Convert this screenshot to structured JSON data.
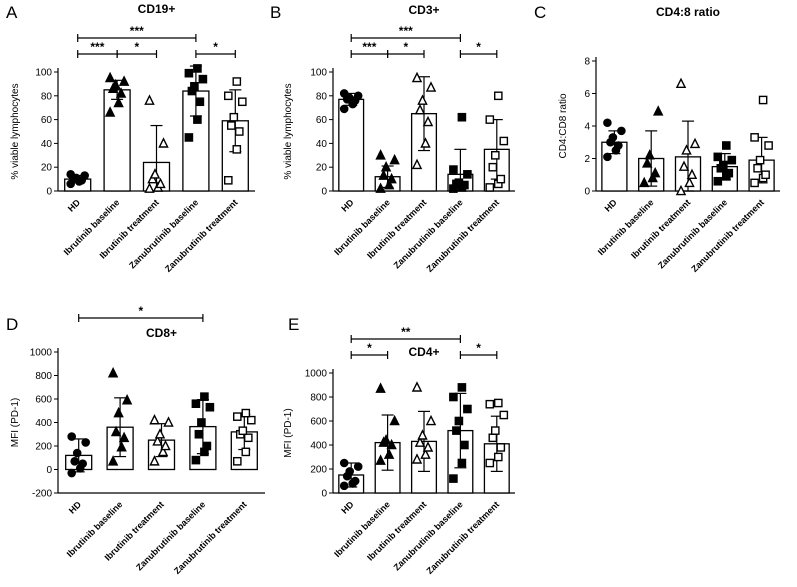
{
  "chart_data": [
    {
      "id": "A",
      "type": "bar",
      "title": "CD19+",
      "ylabel": "% viable lymphocytes",
      "ylim": [
        0,
        100
      ],
      "yticks": [
        0,
        20,
        40,
        60,
        80,
        100
      ],
      "categories": [
        "HD",
        "Ibrutinib baseline",
        "Ibrutinib treatment",
        "Zanubrutinib baseline",
        "Zanubrutinib treatment"
      ],
      "markers": [
        "circle",
        "triangle",
        "triangle-open",
        "square",
        "square-open"
      ],
      "values": [
        10,
        85,
        24,
        84,
        59
      ],
      "sd": [
        3,
        8,
        31,
        21,
        26
      ],
      "points": [
        [
          6,
          8,
          9,
          10,
          11,
          13,
          14
        ],
        [
          66,
          74,
          82,
          86,
          89,
          92,
          95
        ],
        [
          2,
          3,
          6,
          10,
          14,
          40,
          76
        ],
        [
          45,
          60,
          75,
          84,
          88,
          94,
          99,
          103
        ],
        [
          9,
          35,
          50,
          55,
          62,
          75,
          80,
          92
        ]
      ],
      "significance": [
        {
          "from": 0,
          "to": 1,
          "label": "***",
          "level": 0
        },
        {
          "from": 1,
          "to": 2,
          "label": "*",
          "level": 0
        },
        {
          "from": 3,
          "to": 4,
          "label": "*",
          "level": 0
        },
        {
          "from": 0,
          "to": 3,
          "label": "***",
          "level": 1
        }
      ]
    },
    {
      "id": "B",
      "type": "bar",
      "title": "CD3+",
      "ylabel": "% viable lymphocytes",
      "ylim": [
        0,
        100
      ],
      "yticks": [
        0,
        20,
        40,
        60,
        80,
        100
      ],
      "categories": [
        "HD",
        "Ibrutinib baseline",
        "Ibrutinib treatment",
        "Zanubrutinib baseline",
        "Zanubrutinib treatment"
      ],
      "markers": [
        "circle",
        "triangle",
        "triangle-open",
        "square",
        "square-open"
      ],
      "values": [
        77,
        12,
        65,
        14,
        35
      ],
      "sd": [
        5,
        9,
        31,
        21,
        25
      ],
      "points": [
        [
          69,
          73,
          76,
          77,
          78,
          80,
          82
        ],
        [
          2,
          5,
          10,
          13,
          20,
          26,
          30
        ],
        [
          22,
          40,
          58,
          68,
          76,
          87,
          95
        ],
        [
          2,
          3,
          5,
          6,
          7,
          14,
          18,
          62
        ],
        [
          3,
          6,
          10,
          20,
          30,
          42,
          60,
          80
        ]
      ],
      "significance": [
        {
          "from": 0,
          "to": 1,
          "label": "***",
          "level": 0
        },
        {
          "from": 1,
          "to": 2,
          "label": "*",
          "level": 0
        },
        {
          "from": 3,
          "to": 4,
          "label": "*",
          "level": 0
        },
        {
          "from": 0,
          "to": 3,
          "label": "***",
          "level": 1
        }
      ]
    },
    {
      "id": "C",
      "type": "bar",
      "title": "CD4:8 ratio",
      "ylabel": "CD4:CD8 ratio",
      "ylim": [
        0,
        8
      ],
      "yticks": [
        0,
        2,
        4,
        6,
        8
      ],
      "categories": [
        "HD",
        "Ibrutinib baseline",
        "Ibrutinib treatment",
        "Zanubrutinib baseline",
        "Zanubrutinib treatment"
      ],
      "markers": [
        "circle",
        "triangle",
        "triangle-open",
        "square",
        "square-open"
      ],
      "values": [
        3.0,
        2.0,
        2.1,
        1.5,
        1.9
      ],
      "sd": [
        0.7,
        1.7,
        2.2,
        0.8,
        1.4
      ],
      "points": [
        [
          2.1,
          2.5,
          2.8,
          3.0,
          3.3,
          3.7,
          4.2
        ],
        [
          0.5,
          0.8,
          1.1,
          1.7,
          2.2,
          4.9
        ],
        [
          0.0,
          0.5,
          1.0,
          1.5,
          2.5,
          2.9,
          6.6
        ],
        [
          0.6,
          0.9,
          1.1,
          1.4,
          1.6,
          1.9,
          2.1,
          2.8
        ],
        [
          0.5,
          0.8,
          1.0,
          1.4,
          1.9,
          2.8,
          3.3,
          5.6
        ]
      ],
      "significance": []
    },
    {
      "id": "D",
      "type": "bar",
      "title": "CD8+",
      "ylabel": "MFI (PD-1)",
      "ylim": [
        -200,
        1000
      ],
      "yticks": [
        -200,
        0,
        200,
        400,
        600,
        800,
        1000
      ],
      "categories": [
        "HD",
        "Ibrutinib baseline",
        "Ibrutinib treatment",
        "Zanubrutinib baseline",
        "Zanubrutinib treatment"
      ],
      "markers": [
        "circle",
        "triangle",
        "triangle-open",
        "square",
        "square-open"
      ],
      "values": [
        120,
        360,
        250,
        365,
        320
      ],
      "sd": [
        140,
        250,
        140,
        230,
        150
      ],
      "points": [
        [
          -30,
          10,
          50,
          70,
          140,
          230,
          280
        ],
        [
          70,
          190,
          270,
          320,
          480,
          590,
          820
        ],
        [
          70,
          150,
          200,
          240,
          300,
          400,
          420
        ],
        [
          80,
          150,
          200,
          300,
          400,
          530,
          560,
          620
        ],
        [
          70,
          150,
          270,
          300,
          330,
          420,
          450,
          480
        ]
      ],
      "significance": [
        {
          "from": 0,
          "to": 3,
          "label": "*",
          "level": 1
        }
      ]
    },
    {
      "id": "E",
      "type": "bar",
      "title": "CD4+",
      "ylabel": "MFI (PD-1)",
      "ylim": [
        0,
        1000
      ],
      "yticks": [
        0,
        200,
        400,
        600,
        800,
        1000
      ],
      "categories": [
        "HD",
        "Ibrutinib baseline",
        "Ibrutinib treatment",
        "Zanubrutinib baseline",
        "Zanubrutinib treatment"
      ],
      "markers": [
        "circle",
        "triangle",
        "triangle-open",
        "square",
        "square-open"
      ],
      "values": [
        150,
        420,
        430,
        520,
        410
      ],
      "sd": [
        100,
        230,
        250,
        310,
        230
      ],
      "points": [
        [
          60,
          80,
          100,
          140,
          180,
          220,
          250
        ],
        [
          270,
          320,
          400,
          420,
          440,
          600,
          870
        ],
        [
          280,
          320,
          380,
          420,
          480,
          600,
          880
        ],
        [
          120,
          250,
          400,
          520,
          600,
          700,
          800,
          880
        ],
        [
          250,
          300,
          380,
          460,
          520,
          650,
          740,
          750
        ]
      ],
      "significance": [
        {
          "from": 0,
          "to": 1,
          "label": "*",
          "level": 0
        },
        {
          "from": 3,
          "to": 4,
          "label": "*",
          "level": 0
        },
        {
          "from": 0,
          "to": 3,
          "label": "**",
          "level": 1
        }
      ]
    }
  ]
}
